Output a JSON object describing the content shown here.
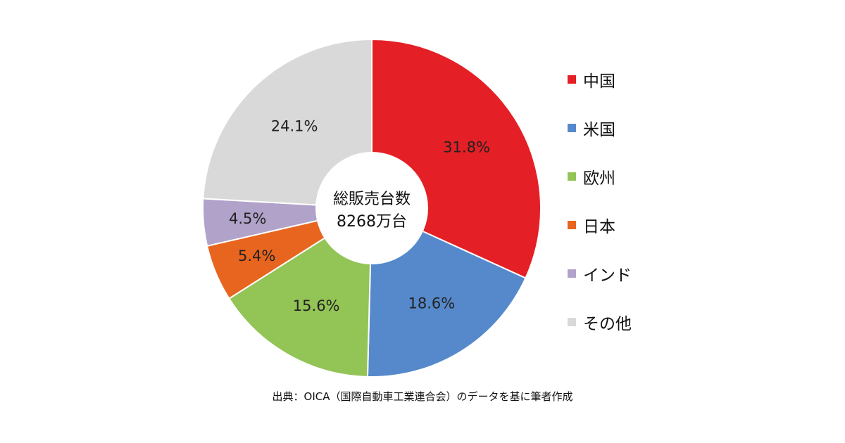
{
  "chart_data": {
    "type": "pie",
    "title": "",
    "center_text": [
      "総販売台数",
      "8268万台"
    ],
    "categories": [
      "中国",
      "米国",
      "欧州",
      "日本",
      "インド",
      "その他"
    ],
    "values": [
      31.8,
      18.6,
      15.6,
      5.4,
      4.5,
      24.1
    ],
    "labels": [
      "31.8%",
      "18.6%",
      "15.6%",
      "5.4%",
      "4.5%",
      "24.1%"
    ],
    "colors": [
      "#E41F25",
      "#5589CB",
      "#93C456",
      "#E8651F",
      "#B0A2C9",
      "#D9D9D9"
    ],
    "legend_position": "right",
    "donut": true
  },
  "legend": {
    "items": [
      {
        "label": "中国",
        "color": "#E41F25"
      },
      {
        "label": "米国",
        "color": "#5589CB"
      },
      {
        "label": "欧州",
        "color": "#93C456"
      },
      {
        "label": "日本",
        "color": "#E8651F"
      },
      {
        "label": "インド",
        "color": "#B0A2C9"
      },
      {
        "label": "その他",
        "color": "#D9D9D9"
      }
    ]
  },
  "source_note": "出典：OICA（国際自動車工業連合会）のデータを基に筆者作成"
}
